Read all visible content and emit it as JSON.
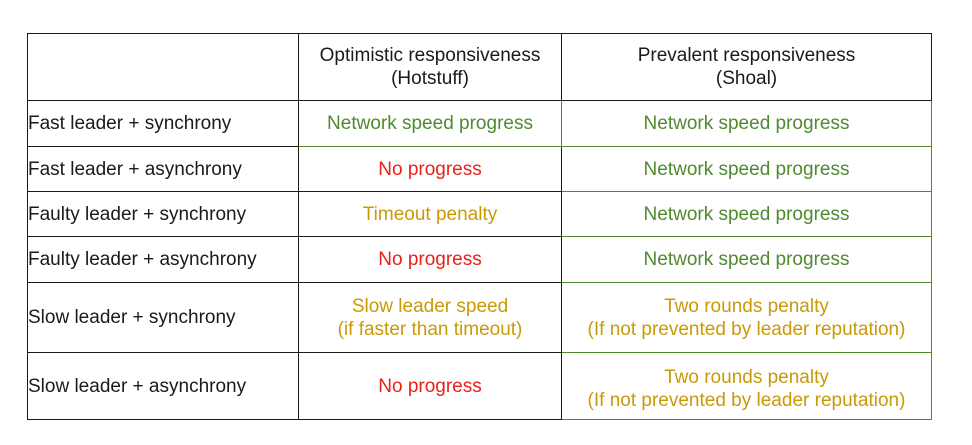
{
  "colors": {
    "green": "#4f8a2f",
    "red": "#e8221b",
    "amber": "#c99a06",
    "text": "#1a1a1a",
    "border": "#1a1a1a"
  },
  "headers": [
    {
      "line1": "",
      "line2": ""
    },
    {
      "line1": "Optimistic responsiveness",
      "line2": "(Hotstuff)"
    },
    {
      "line1": "Prevalent responsiveness",
      "line2": "(Shoal)"
    }
  ],
  "rows": [
    {
      "label": "Fast leader + synchrony",
      "optimistic": {
        "line1": "Network speed progress",
        "line2": "",
        "color": "green"
      },
      "prevalent": {
        "line1": "Network speed progress",
        "line2": "",
        "color": "green"
      }
    },
    {
      "label": "Fast leader + asynchrony",
      "optimistic": {
        "line1": "No progress",
        "line2": "",
        "color": "red"
      },
      "prevalent": {
        "line1": "Network speed progress",
        "line2": "",
        "color": "green"
      }
    },
    {
      "label": "Faulty leader + synchrony",
      "optimistic": {
        "line1": "Timeout penalty",
        "line2": "",
        "color": "amber"
      },
      "prevalent": {
        "line1": "Network speed progress",
        "line2": "",
        "color": "green"
      }
    },
    {
      "label": "Faulty leader + asynchrony",
      "optimistic": {
        "line1": "No progress",
        "line2": "",
        "color": "red"
      },
      "prevalent": {
        "line1": "Network speed progress",
        "line2": "",
        "color": "green"
      }
    },
    {
      "label": "Slow leader + synchrony",
      "optimistic": {
        "line1": "Slow leader speed",
        "line2": "(if faster than timeout)",
        "color": "amber"
      },
      "prevalent": {
        "line1": "Two rounds penalty",
        "line2": "(If not prevented by leader reputation)",
        "color": "amber"
      }
    },
    {
      "label": "Slow leader + asynchrony",
      "optimistic": {
        "line1": "No progress",
        "line2": "",
        "color": "red"
      },
      "prevalent": {
        "line1": "Two rounds penalty",
        "line2": "(If not prevented by leader reputation)",
        "color": "amber"
      }
    }
  ]
}
